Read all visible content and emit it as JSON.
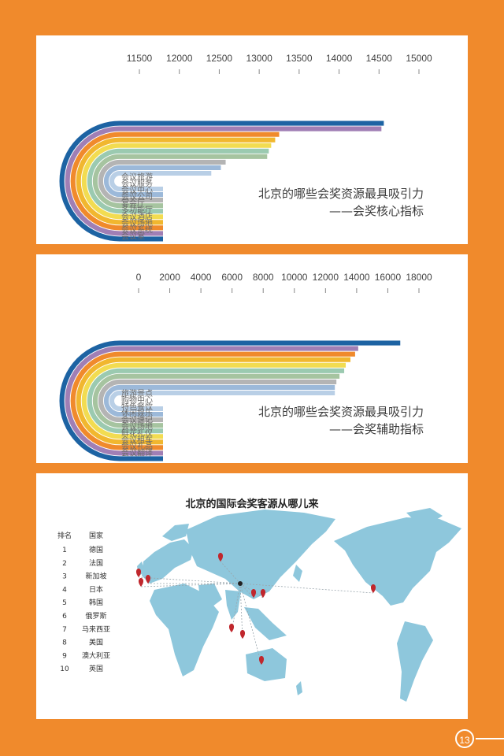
{
  "chart_data": [
    {
      "type": "bar",
      "title": "北京的哪些会奖资源最具吸引力",
      "subtitle": "——会奖核心指标",
      "x_ticks": [
        11500,
        12000,
        12500,
        13000,
        13500,
        14000,
        14500,
        15000
      ],
      "xlim": [
        11500,
        15000
      ],
      "categories": [
        "会议旅游",
        "会议服务",
        "会议中心",
        "会议公司",
        "宴会厅",
        "多功能厅",
        "会议酒店",
        "会议场地",
        "会议系统",
        "会议室"
      ],
      "values": [
        12400,
        12520,
        12580,
        13100,
        13120,
        13150,
        13200,
        13250,
        14530,
        14560
      ],
      "colors": [
        "#b9cfe6",
        "#9cb9d9",
        "#b4b4b4",
        "#a6c4a0",
        "#9bcab0",
        "#f2dc51",
        "#f1b72f",
        "#f08a2c",
        "#a07fb5",
        "#1d63a3"
      ]
    },
    {
      "type": "bar",
      "title": "北京的哪些会奖资源最具吸引力",
      "subtitle": "——会奖辅助指标",
      "x_ticks": [
        0,
        2000,
        4000,
        6000,
        8000,
        10000,
        12000,
        14000,
        16000,
        18000
      ],
      "xlim": [
        0,
        18000
      ],
      "categories": [
        "旅游景点",
        "购物中心",
        "特色餐饮",
        "休闲娱乐",
        "会议速记",
        "会议场地",
        "鲜花礼仪",
        "会议租车",
        "会议礼品",
        "会议翻译"
      ],
      "values": [
        12600,
        12600,
        12700,
        12900,
        13200,
        13300,
        13600,
        13900,
        14100,
        16800
      ],
      "colors": [
        "#b9cfe6",
        "#9cb9d9",
        "#b4b4b4",
        "#a6c4a0",
        "#9bcab0",
        "#f2dc51",
        "#f1b72f",
        "#f08a2c",
        "#a07fb5",
        "#1d63a3"
      ]
    },
    {
      "type": "table",
      "title": "北京的国际会奖客源从哪儿来",
      "columns": [
        "排名",
        "国家"
      ],
      "rows": [
        [
          "1",
          "德国"
        ],
        [
          "2",
          "法国"
        ],
        [
          "3",
          "新加坡"
        ],
        [
          "4",
          "日本"
        ],
        [
          "5",
          "韩国"
        ],
        [
          "6",
          "俄罗斯"
        ],
        [
          "7",
          "马来西亚"
        ],
        [
          "8",
          "美国"
        ],
        [
          "9",
          "澳大利亚"
        ],
        [
          "10",
          "英国"
        ]
      ]
    }
  ],
  "map": {
    "land_color": "#8ec7dc",
    "marker_color": "#c0272d",
    "origin_color": "#222222"
  },
  "page_number": "13"
}
